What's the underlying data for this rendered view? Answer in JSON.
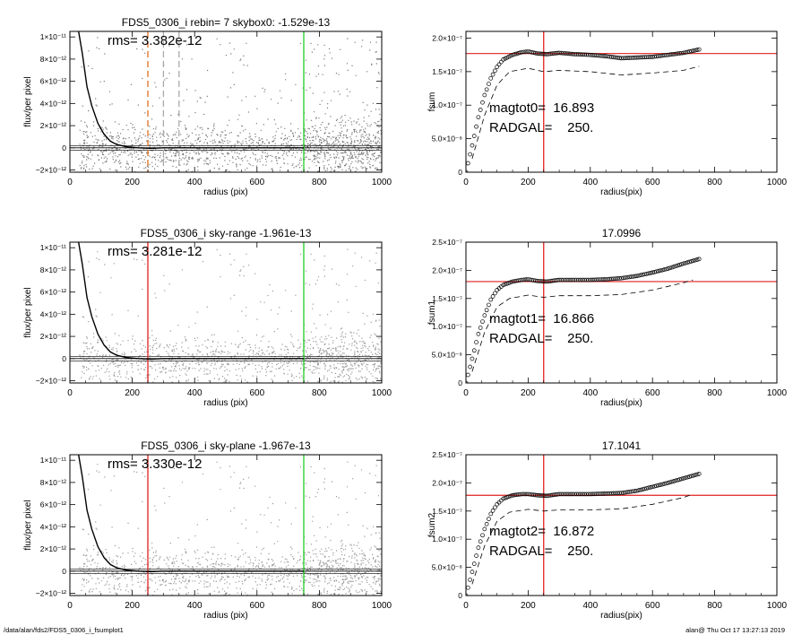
{
  "footer": {
    "path": "/data/alan/fds2/FDS5_0306_i_fsumplot1",
    "stamp": "alan@  Thu Oct 17 13:27:13 2019"
  },
  "chart_data": [
    {
      "type": "scatter",
      "title": "FDS5_0306_i rebin= 7    skybox0: -1.529e-13",
      "xlabel": "radius (pix)",
      "ylabel": "flux/per pixel",
      "xlim": [
        0,
        1000
      ],
      "ylim": [
        -2.2e-12,
        1.05e-11
      ],
      "xticks": [
        "0",
        "200",
        "400",
        "600",
        "800",
        "1000"
      ],
      "yticks": [
        {
          "value": -2e-12,
          "label": "−2×10⁻¹²"
        },
        {
          "value": 0,
          "label": "0"
        },
        {
          "value": 2e-12,
          "label": "2×10⁻¹²"
        },
        {
          "value": 4e-12,
          "label": "4×10⁻¹²"
        },
        {
          "value": 6e-12,
          "label": "6×10⁻¹²"
        },
        {
          "value": 8e-12,
          "label": "8×10⁻¹²"
        },
        {
          "value": 1e-11,
          "label": "1×10⁻¹¹"
        }
      ],
      "annotation": "rms= 3.382e-12",
      "rms": 3.382e-12,
      "profile": {
        "x": [
          28,
          40,
          55,
          70,
          90,
          110,
          130,
          150,
          180,
          220,
          260,
          300,
          400,
          500,
          600,
          750
        ],
        "y": [
          1.05e-11,
          8.5e-12,
          5.5e-12,
          3.8e-12,
          2.2e-12,
          1.2e-12,
          6e-13,
          3e-13,
          1e-13,
          0,
          -5e-14,
          0,
          0,
          0,
          0,
          0
        ]
      },
      "vlines": [
        {
          "x": 250,
          "color": "#e07020",
          "style": "dashed"
        },
        {
          "x": 300,
          "color": "#aaaaaa",
          "style": "dashed"
        },
        {
          "x": 350,
          "color": "#aaaaaa",
          "style": "dashed"
        },
        {
          "x": 750,
          "color": "#22cc22",
          "style": "solid"
        }
      ],
      "hlines": [
        {
          "y": 0,
          "color": "#000000",
          "style": "solid"
        }
      ]
    },
    {
      "type": "line",
      "title": "",
      "xlabel": "radius(pix)",
      "ylabel": "fsum",
      "xlim": [
        0,
        1000
      ],
      "ylim": [
        0,
        2.1e-07
      ],
      "xticks": [
        "0",
        "200",
        "400",
        "600",
        "800",
        "1000"
      ],
      "yticks": [
        {
          "value": 0,
          "label": "0"
        },
        {
          "value": 5e-08,
          "label": "5.0×10⁻⁸"
        },
        {
          "value": 1e-07,
          "label": "1.0×10⁻⁷"
        },
        {
          "value": 1.5e-07,
          "label": "1.5×10⁻⁷"
        },
        {
          "value": 2e-07,
          "label": "2.0×10⁻⁷"
        }
      ],
      "annotations": [
        "magtot0=  16.893",
        "RADGAL=    250."
      ],
      "series": [
        {
          "style": "circles",
          "x": [
            0,
            20,
            40,
            60,
            80,
            100,
            120,
            150,
            180,
            200,
            230,
            260,
            300,
            350,
            400,
            450,
            500,
            550,
            600,
            650,
            700,
            750
          ],
          "y": [
            0,
            4e-08,
            8.2e-08,
            1.15e-07,
            1.4e-07,
            1.57e-07,
            1.68e-07,
            1.75e-07,
            1.79e-07,
            1.8e-07,
            1.77e-07,
            1.76e-07,
            1.78e-07,
            1.76e-07,
            1.75e-07,
            1.73e-07,
            1.7e-07,
            1.71e-07,
            1.72e-07,
            1.75e-07,
            1.78e-07,
            1.83e-07
          ]
        },
        {
          "style": "dashed",
          "x": [
            20,
            60,
            100,
            140,
            200,
            250,
            300,
            400,
            500,
            600,
            700,
            750
          ],
          "y": [
            2e-08,
            8.5e-08,
            1.3e-07,
            1.5e-07,
            1.55e-07,
            1.5e-07,
            1.52e-07,
            1.5e-07,
            1.45e-07,
            1.48e-07,
            1.52e-07,
            1.58e-07
          ]
        }
      ],
      "vlines": [
        {
          "x": 250,
          "color": "#e02020",
          "style": "solid"
        }
      ],
      "hlines": [
        {
          "y": 1.77e-07,
          "color": "#e02020",
          "style": "solid"
        }
      ]
    },
    {
      "type": "scatter",
      "title": "FDS5_0306_i sky-range -1.961e-13",
      "xlabel": "radius (pix)",
      "ylabel": "flux/per pixel",
      "xlim": [
        0,
        1000
      ],
      "ylim": [
        -2.2e-12,
        1.05e-11
      ],
      "xticks": [
        "0",
        "200",
        "400",
        "600",
        "800",
        "1000"
      ],
      "yticks": [
        {
          "value": -2e-12,
          "label": "−2×10⁻¹²"
        },
        {
          "value": 0,
          "label": "0"
        },
        {
          "value": 2e-12,
          "label": "2×10⁻¹²"
        },
        {
          "value": 4e-12,
          "label": "4×10⁻¹²"
        },
        {
          "value": 6e-12,
          "label": "6×10⁻¹²"
        },
        {
          "value": 8e-12,
          "label": "8×10⁻¹²"
        },
        {
          "value": 1e-11,
          "label": "1×10⁻¹¹"
        }
      ],
      "annotation": "rms= 3.281e-12",
      "rms": 3.281e-12,
      "profile": {
        "x": [
          28,
          40,
          55,
          70,
          90,
          110,
          130,
          150,
          180,
          220,
          260,
          300,
          400,
          500,
          600,
          750
        ],
        "y": [
          1.05e-11,
          8.5e-12,
          5.5e-12,
          3.8e-12,
          2.2e-12,
          1.2e-12,
          6e-13,
          3e-13,
          1e-13,
          0,
          -5e-14,
          0,
          0,
          0,
          0,
          0
        ]
      },
      "vlines": [
        {
          "x": 250,
          "color": "#e02020",
          "style": "solid"
        },
        {
          "x": 750,
          "color": "#22cc22",
          "style": "solid"
        }
      ],
      "hlines": [
        {
          "y": 0,
          "color": "#000000",
          "style": "solid"
        }
      ]
    },
    {
      "type": "line",
      "title": "17.0996",
      "xlabel": "radius(pix)",
      "ylabel": "fsum1",
      "xlim": [
        0,
        1000
      ],
      "ylim": [
        0,
        2.5e-07
      ],
      "xticks": [
        "0",
        "200",
        "400",
        "600",
        "800",
        "1000"
      ],
      "yticks": [
        {
          "value": 0,
          "label": "0"
        },
        {
          "value": 5e-08,
          "label": "5.0×10⁻⁸"
        },
        {
          "value": 1e-07,
          "label": "1.0×10⁻⁷"
        },
        {
          "value": 1.5e-07,
          "label": "1.5×10⁻⁷"
        },
        {
          "value": 2e-07,
          "label": "2.0×10⁻⁷"
        },
        {
          "value": 2.5e-07,
          "label": "2.5×10⁻⁷"
        }
      ],
      "annotations": [
        "magtot1=  16.866",
        "RADGAL=    250."
      ],
      "series": [
        {
          "style": "circles",
          "x": [
            0,
            20,
            40,
            60,
            80,
            100,
            120,
            150,
            180,
            200,
            230,
            260,
            300,
            350,
            400,
            450,
            500,
            550,
            600,
            650,
            700,
            750
          ],
          "y": [
            0,
            4.3e-08,
            8.7e-08,
            1.2e-07,
            1.48e-07,
            1.65e-07,
            1.74e-07,
            1.8e-07,
            1.83e-07,
            1.84e-07,
            1.81e-07,
            1.8e-07,
            1.83e-07,
            1.83e-07,
            1.83e-07,
            1.84e-07,
            1.86e-07,
            1.9e-07,
            1.96e-07,
            2.03e-07,
            2.12e-07,
            2.2e-07
          ]
        },
        {
          "style": "dashed",
          "x": [
            20,
            60,
            100,
            140,
            200,
            250,
            300,
            400,
            500,
            600,
            700,
            730
          ],
          "y": [
            2e-08,
            9e-08,
            1.35e-07,
            1.5e-07,
            1.56e-07,
            1.52e-07,
            1.55e-07,
            1.55e-07,
            1.57e-07,
            1.65e-07,
            1.78e-07,
            1.83e-07
          ]
        }
      ],
      "vlines": [
        {
          "x": 250,
          "color": "#e02020",
          "style": "solid"
        }
      ],
      "hlines": [
        {
          "y": 1.8e-07,
          "color": "#e02020",
          "style": "solid"
        }
      ]
    },
    {
      "type": "scatter",
      "title": "FDS5_0306_i sky-plane -1.967e-13",
      "xlabel": "radius (pix)",
      "ylabel": "flux/per pixel",
      "xlim": [
        0,
        1000
      ],
      "ylim": [
        -2.2e-12,
        1.05e-11
      ],
      "xticks": [
        "0",
        "200",
        "400",
        "600",
        "800",
        "1000"
      ],
      "yticks": [
        {
          "value": -2e-12,
          "label": "−2×10⁻¹²"
        },
        {
          "value": 0,
          "label": "0"
        },
        {
          "value": 2e-12,
          "label": "2×10⁻¹²"
        },
        {
          "value": 4e-12,
          "label": "4×10⁻¹²"
        },
        {
          "value": 6e-12,
          "label": "6×10⁻¹²"
        },
        {
          "value": 8e-12,
          "label": "8×10⁻¹²"
        },
        {
          "value": 1e-11,
          "label": "1×10⁻¹¹"
        }
      ],
      "annotation": "rms= 3.330e-12",
      "rms": 3.33e-12,
      "profile": {
        "x": [
          28,
          40,
          55,
          70,
          90,
          110,
          130,
          150,
          180,
          220,
          260,
          300,
          400,
          500,
          600,
          750
        ],
        "y": [
          1.05e-11,
          8.5e-12,
          5.5e-12,
          3.8e-12,
          2.2e-12,
          1.2e-12,
          6e-13,
          3e-13,
          1e-13,
          0,
          -5e-14,
          0,
          0,
          0,
          0,
          0
        ]
      },
      "vlines": [
        {
          "x": 250,
          "color": "#e02020",
          "style": "solid"
        },
        {
          "x": 750,
          "color": "#22cc22",
          "style": "solid"
        }
      ],
      "hlines": [
        {
          "y": 0,
          "color": "#000000",
          "style": "solid"
        }
      ]
    },
    {
      "type": "line",
      "title": "17.1041",
      "xlabel": "radius(pix)",
      "ylabel": "fsum2",
      "xlim": [
        0,
        1000
      ],
      "ylim": [
        0,
        2.5e-07
      ],
      "xticks": [
        "0",
        "200",
        "400",
        "600",
        "800",
        "1000"
      ],
      "yticks": [
        {
          "value": 0,
          "label": "0"
        },
        {
          "value": 5e-08,
          "label": "5.0×10⁻⁸"
        },
        {
          "value": 1e-07,
          "label": "1.0×10⁻⁷"
        },
        {
          "value": 1.5e-07,
          "label": "1.5×10⁻⁷"
        },
        {
          "value": 2e-07,
          "label": "2.0×10⁻⁷"
        },
        {
          "value": 2.5e-07,
          "label": "2.5×10⁻⁷"
        }
      ],
      "annotations": [
        "magtot2=  16.872",
        "RADGAL=    250."
      ],
      "series": [
        {
          "style": "circles",
          "x": [
            0,
            20,
            40,
            60,
            80,
            100,
            120,
            150,
            180,
            200,
            230,
            260,
            300,
            350,
            400,
            450,
            500,
            550,
            600,
            650,
            700,
            750
          ],
          "y": [
            0,
            4.2e-08,
            8.5e-08,
            1.18e-07,
            1.45e-07,
            1.62e-07,
            1.72e-07,
            1.78e-07,
            1.8e-07,
            1.8e-07,
            1.78e-07,
            1.77e-07,
            1.8e-07,
            1.8e-07,
            1.8e-07,
            1.81e-07,
            1.82e-07,
            1.86e-07,
            1.93e-07,
            2e-07,
            2.08e-07,
            2.16e-07
          ]
        },
        {
          "style": "dashed",
          "x": [
            20,
            60,
            100,
            140,
            200,
            250,
            300,
            400,
            500,
            600,
            700,
            730
          ],
          "y": [
            2e-08,
            8.8e-08,
            1.32e-07,
            1.48e-07,
            1.53e-07,
            1.5e-07,
            1.52e-07,
            1.52e-07,
            1.54e-07,
            1.62e-07,
            1.74e-07,
            1.8e-07
          ]
        }
      ],
      "vlines": [
        {
          "x": 250,
          "color": "#e02020",
          "style": "solid"
        }
      ],
      "hlines": [
        {
          "y": 1.78e-07,
          "color": "#e02020",
          "style": "solid"
        }
      ]
    }
  ]
}
